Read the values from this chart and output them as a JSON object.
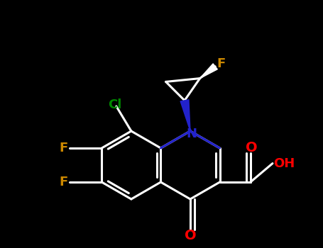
{
  "background": "#000000",
  "bond_color": "#ffffff",
  "bond_lw": 2.2,
  "figsize": [
    4.55,
    3.5
  ],
  "dpi": 100,
  "colors": {
    "F": "#cc8800",
    "Cl": "#008800",
    "N": "#2222cc",
    "O": "#ff0000",
    "bond": "#ffffff"
  }
}
